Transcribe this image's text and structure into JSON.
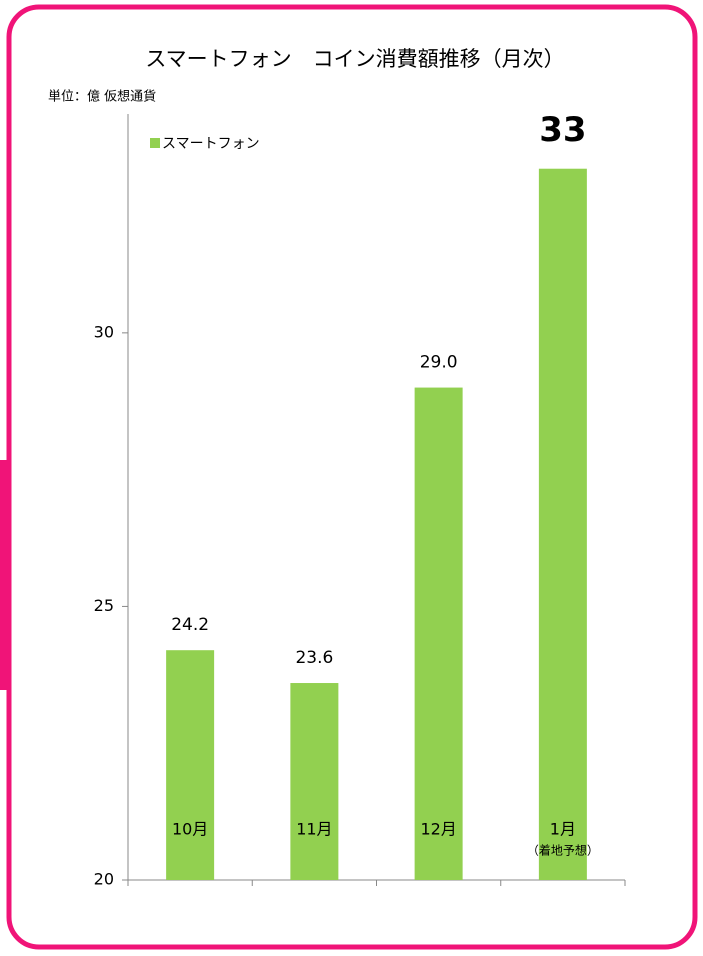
{
  "chart_data": {
    "type": "bar",
    "title": "スマートフォン　コイン消費額推移（月次）",
    "unit_label": "単位：億 仮想通貨",
    "categories": [
      "10月",
      "11月",
      "12月",
      "1月"
    ],
    "annotation": "（着地予想）",
    "series": [
      {
        "name": "スマートフォン",
        "color": "#92d050",
        "values": [
          24.2,
          23.6,
          29.0,
          33
        ],
        "value_labels": [
          "24.2",
          "23.6",
          "29.0",
          "33"
        ]
      }
    ],
    "ylim": [
      20,
      34
    ],
    "yticks": [
      20,
      25,
      30
    ],
    "legend": "top-left"
  }
}
